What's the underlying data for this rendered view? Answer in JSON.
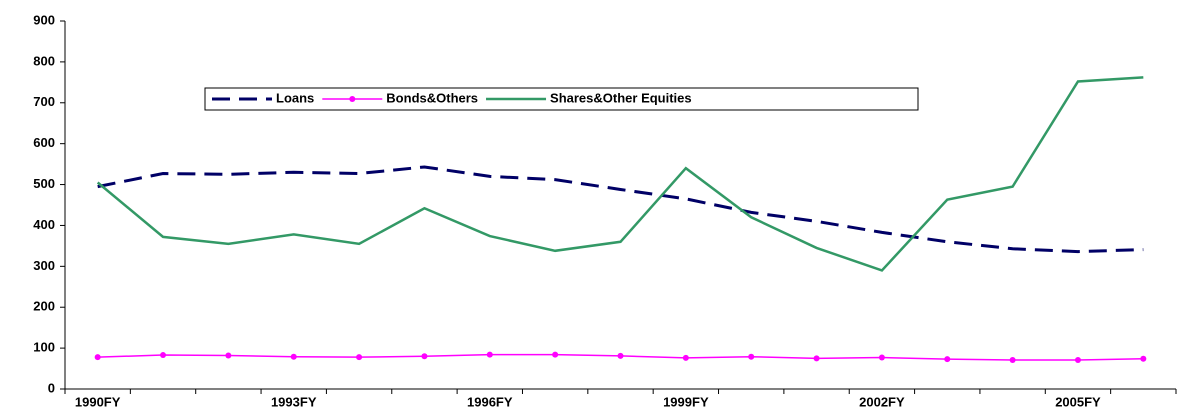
{
  "chart_data": {
    "type": "line",
    "categories": [
      "1990FY",
      null,
      null,
      "1993FY",
      null,
      null,
      "1996FY",
      null,
      null,
      "1999FY",
      null,
      null,
      "2002FY",
      null,
      null,
      "2005FY",
      null
    ],
    "series": [
      {
        "name": "Loans",
        "color": "#000066",
        "values": [
          495,
          527,
          525,
          530,
          527,
          543,
          520,
          512,
          488,
          465,
          432,
          410,
          383,
          360,
          343,
          336,
          341
        ]
      },
      {
        "name": "Bonds&Others",
        "color": "#ff00ff",
        "values": [
          78,
          83,
          82,
          79,
          78,
          80,
          84,
          84,
          81,
          76,
          79,
          75,
          77,
          73,
          71,
          71,
          74
        ]
      },
      {
        "name": "Shares&Other Equities",
        "color": "#339966",
        "values": [
          505,
          372,
          355,
          378,
          355,
          442,
          374,
          338,
          360,
          540,
          420,
          345,
          290,
          463,
          495,
          752,
          762
        ]
      }
    ],
    "ylim": [
      0,
      900
    ],
    "yticks": [
      0,
      100,
      200,
      300,
      400,
      500,
      600,
      700,
      800,
      900
    ]
  }
}
